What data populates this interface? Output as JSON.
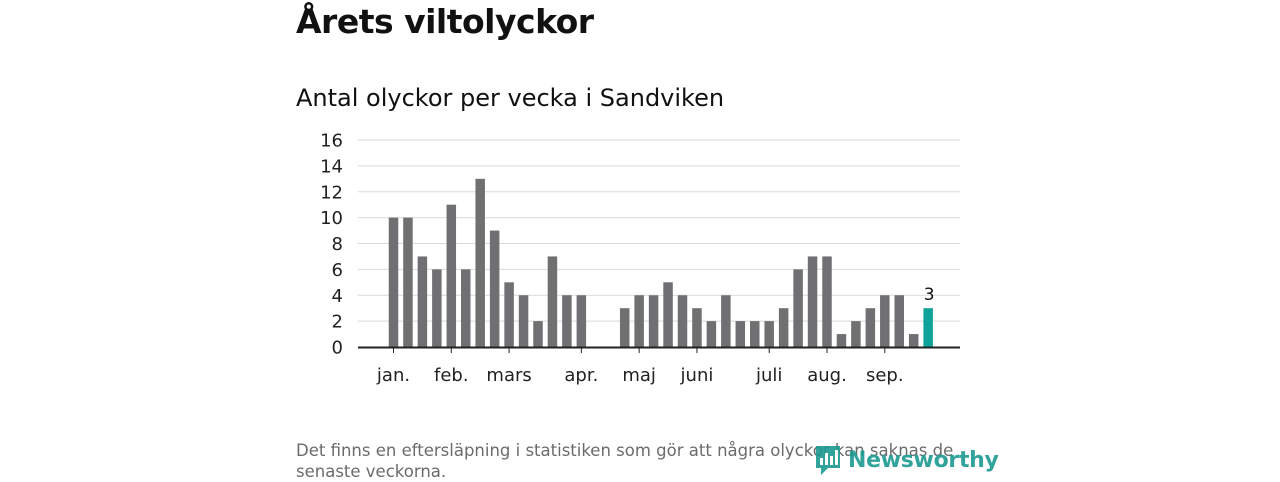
{
  "title": "Årets viltolyckor",
  "subtitle": "Antal olyckor per vecka i Sandviken",
  "footnote": "Det finns en eftersläpning i statistiken som gör att några olyckor kan saknas de senaste veckorna.",
  "logo": {
    "text": "Newsworthy"
  },
  "colors": {
    "bar": "#707072",
    "highlight": "#0ea398",
    "grid": "#d9d9d9",
    "axis": "#222222",
    "logo": "#1b9a91"
  },
  "chart_data": {
    "type": "bar",
    "title": "Antal olyckor per vecka i Sandviken",
    "xlabel": "",
    "ylabel": "",
    "ylim": [
      0,
      16
    ],
    "yticks": [
      0,
      2,
      4,
      6,
      8,
      10,
      12,
      14,
      16
    ],
    "grid": true,
    "weeks": [
      1,
      2,
      3,
      4,
      5,
      6,
      7,
      8,
      9,
      10,
      11,
      12,
      13,
      14,
      15,
      16,
      17,
      18,
      19,
      20,
      21,
      22,
      23,
      24,
      25,
      26,
      27,
      28,
      29,
      30,
      31,
      32,
      33,
      34,
      35,
      36,
      37,
      38
    ],
    "values": [
      10,
      10,
      7,
      6,
      11,
      6,
      13,
      9,
      5,
      4,
      2,
      7,
      4,
      4,
      null,
      null,
      3,
      4,
      4,
      5,
      4,
      3,
      2,
      4,
      2,
      2,
      2,
      3,
      6,
      7,
      7,
      1,
      2,
      3,
      4,
      4,
      1,
      3
    ],
    "highlight_last": true,
    "highlight_label": "3",
    "month_labels": [
      {
        "label": "jan.",
        "week": 1
      },
      {
        "label": "feb.",
        "week": 5
      },
      {
        "label": "mars",
        "week": 9
      },
      {
        "label": "apr.",
        "week": 14
      },
      {
        "label": "maj",
        "week": 18
      },
      {
        "label": "juni",
        "week": 22
      },
      {
        "label": "juli",
        "week": 27
      },
      {
        "label": "aug.",
        "week": 31
      },
      {
        "label": "sep.",
        "week": 35
      }
    ]
  }
}
